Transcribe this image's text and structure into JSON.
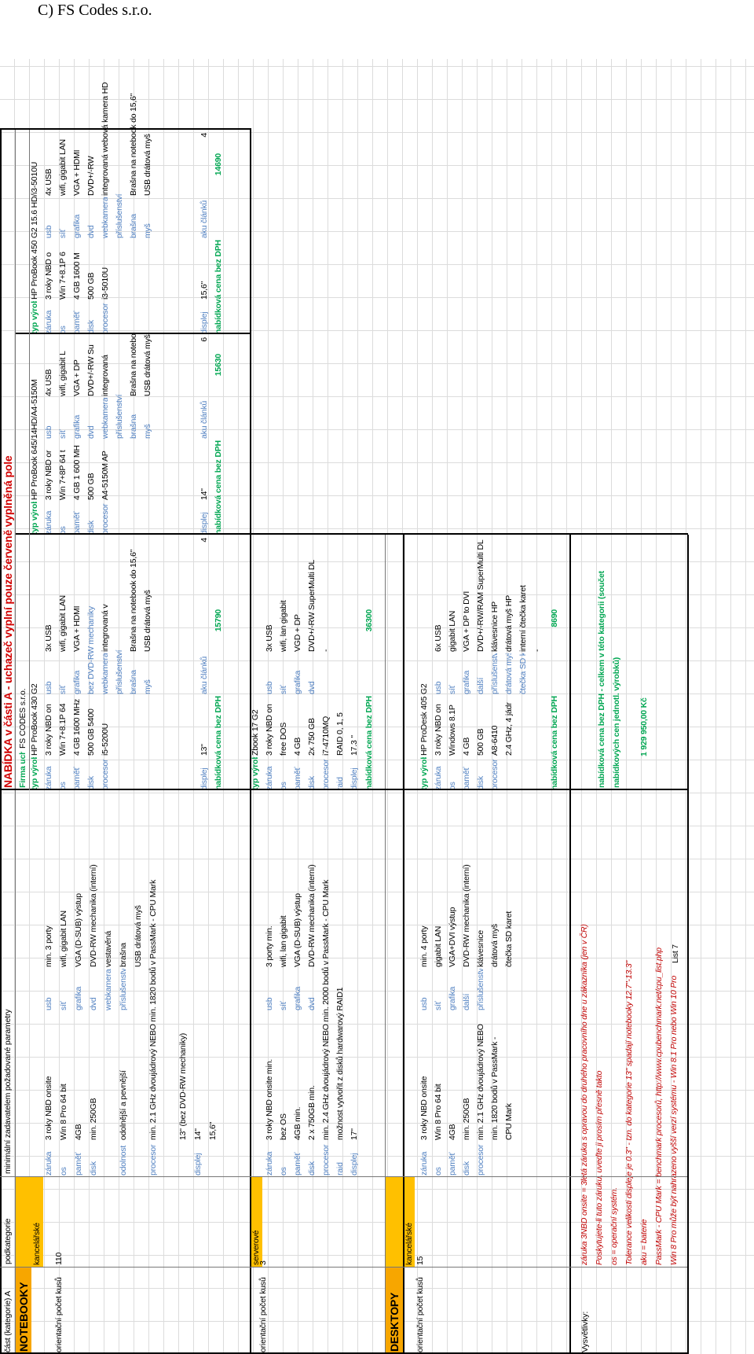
{
  "heading": "C)  FS Codes s.r.o.",
  "sheet": {
    "headers": [
      "část (kategorie) A",
      "podkategorie",
      "minimální zadavatelem požadované parametry",
      "NABÍDKA v části A - uchazeč vyplní pouze červeně vyplněná pole"
    ],
    "firm_label": "Firma uchazeče:",
    "firm": "FS CODES s.r.o.",
    "sections": [
      {
        "category": "NOTEBOOKY",
        "subcategory": "kancelářské",
        "count_label": "orientační počet kusů",
        "count": 110,
        "requirements": [
          [
            "záruka",
            "3 roky NBD onsite",
            "usb",
            "min. 3 porty"
          ],
          [
            "os",
            "Win 8 Pro 64 bit",
            "síť",
            "wifi, gigabit LAN"
          ],
          [
            "paměť",
            "4GB",
            "grafika",
            "VGA (D-SUB) výstup"
          ],
          [
            "disk",
            "min. 250GB",
            "dvd",
            "DVD-RW mechanika (interní)"
          ],
          [
            null,
            null,
            "webkamera",
            "vestavěná"
          ],
          [
            "odolnost",
            "odolnější a pevnější",
            "příslušenství",
            "brašna"
          ],
          [
            null,
            null,
            null,
            "USB drátová myš"
          ],
          [
            "procesor",
            "min. 2.1 GHz dvoujádrový NEBO min. 1820 bodů v PassMark - CPU Mark",
            null,
            null
          ],
          [
            null,
            null,
            null,
            null
          ],
          [
            null,
            "13\" (bez DVD-RW mechaniky)",
            null,
            null
          ],
          [
            "displej",
            "14\"",
            null,
            null
          ],
          [
            null,
            "15,6\"",
            null,
            null
          ]
        ],
        "offers": [
          {
            "rows": [
              [
                "typ výrobku",
                "HP ProBook 430 G2",
                null,
                null
              ],
              [
                "záruka",
                "3 roky NBD on",
                "usb",
                "3x USB"
              ],
              [
                "os",
                "Win 7+8.1P 64",
                "síť",
                "wifi, gigabit LAN"
              ],
              [
                "paměť",
                "4 GB 1600 MHz",
                "grafika",
                "VGA + HDMI"
              ],
              [
                "disk",
                "500 GB 5400",
                "bez DVD-RW mechaniky",
                null
              ],
              [
                "procesor",
                "i5-5200U",
                "webkamera",
                "integrovaná v"
              ],
              [
                null,
                null,
                "příslušenství",
                null
              ],
              [
                null,
                null,
                "brašna",
                "Brašna na notebook do 15,6\""
              ],
              [
                null,
                null,
                "myš",
                "USB drátová myš"
              ]
            ],
            "bottom": [
              "displej",
              "13\"",
              "aku článků",
              4
            ],
            "price_label": "nabídková cena bez DPH",
            "price": 15790
          },
          {
            "rows": [
              [
                "typ výrobku",
                "HP ProBook 645/14HD/A4-5150M",
                null,
                null
              ],
              [
                "záruka",
                "3 roky NBD or",
                "usb",
                "4x USB"
              ],
              [
                "os",
                "Win 7+8P 64 t",
                "síť",
                "wifi, gigabit L"
              ],
              [
                "paměť",
                "4 GB 1 600 MH",
                "grafika",
                "VGA + DP"
              ],
              [
                "disk",
                "500 GB",
                "dvd",
                "DVD+/-RW Su"
              ],
              [
                "procesor",
                "A4-5150M AP",
                "webkamera",
                "integrovaná"
              ],
              [
                null,
                null,
                "příslušenství",
                null
              ],
              [
                null,
                null,
                "brašna",
                "Brašna na notebook do 15,6\""
              ],
              [
                null,
                null,
                "myš",
                "USB drátová myš"
              ]
            ],
            "bottom": [
              "displej",
              "14\"",
              "aku článků",
              6
            ],
            "price_label": "nabídková cena bez DPH",
            "price": 15630
          },
          {
            "rows": [
              [
                "typ výrobku",
                "HP ProBook 450 G2 15.6 HD/i3-5010U",
                null,
                null
              ],
              [
                "záruka",
                "3 roky NBD o",
                "usb",
                "4x USB"
              ],
              [
                "os",
                "Win 7+8.1P 6",
                "síť",
                "wifi, gigabit LAN"
              ],
              [
                "paměť",
                "4 GB 1600 M",
                "grafika",
                "VGA + HDMI"
              ],
              [
                "disk",
                "500 GB",
                "dvd",
                "DVD+/-RW"
              ],
              [
                "procesor",
                "i3-5010U",
                "webkamera",
                "integrovaná webová kamera HD"
              ],
              [
                null,
                null,
                "příslušenství",
                null
              ],
              [
                null,
                null,
                "brašna",
                "Brašna na notebook do 15,6\""
              ],
              [
                null,
                null,
                "myš",
                "USB drátová myš"
              ]
            ],
            "bottom": [
              "displej",
              "15,6\"",
              "aku článků",
              4
            ],
            "price_label": "nabídková cena bez DPH",
            "price": 14690
          }
        ]
      },
      {
        "subcategory": "serverové",
        "count_label": "orientační počet kusů",
        "count": 3,
        "requirements": [
          [
            "záruka",
            "3 roky NBD onsite min.",
            "usb",
            "3 porty min."
          ],
          [
            "os",
            "bez OS",
            "síť",
            "wifi, lan gigabit"
          ],
          [
            "paměť",
            "4GB min.",
            "grafika",
            "VGA (D-SUB) výstup"
          ],
          [
            "disk",
            "2 x 750GB min.",
            "dvd",
            "DVD-RW mechanika (interní)"
          ],
          [
            "procesor",
            "min. 2.4 GHz dvoujádrový NEBO min. 2000 bodů v PassMark - CPU Mark",
            null,
            null
          ],
          [
            "raid",
            "možnost vytvořit z disků hardwarový RAID1",
            null,
            null
          ],
          [
            "displej",
            "17\"",
            null,
            null
          ]
        ],
        "offers": [
          {
            "rows": [
              [
                "typ výrobku",
                "Zbook 17 G2",
                null,
                null
              ],
              [
                "záruka",
                "3 roky NBD on",
                "usb",
                "3x USB"
              ],
              [
                "os",
                "free DOS",
                "síť",
                "wifi, lan gigabit"
              ],
              [
                "paměť",
                "4 GB",
                "grafika",
                "VGD + DP"
              ],
              [
                "disk",
                "2x 750 GB",
                "dvd",
                "DVD+/-RW SuperMulti DL"
              ],
              [
                "procesor",
                "i7-4710MQ",
                null,
                "-"
              ],
              [
                "raid",
                "RAID 0, 1, 5",
                null,
                null
              ]
            ],
            "bottom": [
              "displej",
              "17.3 \"",
              null,
              null
            ],
            "price_label": "nabídková cena bez DPH",
            "price": 36300
          }
        ]
      },
      {
        "category": "DESKTOPY",
        "subcategory": "kancelářské",
        "count_label": "orientační počet kusů",
        "count": 15,
        "requirements": [
          [
            "záruka",
            "3 roky NBD onsite",
            "usb",
            "min. 4 porty"
          ],
          [
            "os",
            "Win 8 Pro 64 bit",
            "síť",
            "gigabit LAN"
          ],
          [
            "paměť",
            "4GB",
            "grafika",
            "VGA+DVI výstup"
          ],
          [
            "disk",
            "min. 250GB",
            "další",
            "DVD-RW mechanika (interní)"
          ],
          [
            "procesor",
            "min. 2.1 GHz dvoujádrový NEBO",
            "příslušenství",
            "klávesnice"
          ],
          [
            null,
            "min. 1820 bodů v PassMark -",
            null,
            "drátová myš"
          ],
          [
            null,
            "CPU Mark",
            null,
            "čtečka SD karet"
          ]
        ],
        "offers": [
          {
            "rows": [
              [
                "typ výrobku",
                "HP ProDesk 405 G2",
                null,
                null
              ],
              [
                "záruka",
                "3 roky NBD on",
                "usb",
                "6x USB"
              ],
              [
                "os",
                "Windows 8.1P",
                "síť",
                "gigabit LAN"
              ],
              [
                "paměť",
                "4 GB",
                "grafika",
                "VGA + DP to DVI"
              ],
              [
                "disk",
                "500 GB",
                "další",
                "DVD+/-RW/RAM SuperMulti DL"
              ],
              [
                "procesor",
                "A8-6410",
                "příslušenství",
                "klávesnice HP"
              ],
              [
                null,
                "2.4 GHz, 4 jádr",
                "drátová myš",
                "drátová myš HP"
              ],
              [
                null,
                null,
                "čtečka SD karet",
                "interní čtečka karet"
              ],
              [
                null,
                null,
                null,
                "-"
              ]
            ],
            "price_label": "nabídková cena bez DPH",
            "price": 8690
          }
        ]
      }
    ],
    "notes_label": "Vysvětlivky:",
    "notes": [
      "záruka 3NBD onsite = 3letá záruka s opravou do druhého pracovního dne u zákazníka (jen v ČR)",
      "Poskytujete-li tuto záruku, uveďte ji prosím přesně takto",
      "os = operační systém.",
      "Tolerance velikosti displeje je 0.3\" - tzn. do kategorie 13\" spadají notebooky 12.7\"-13.3\"",
      "aku = baterie",
      "PassMark - CPU Mark = benchmark procesorů, http://www.cpubenchmark.net/cpu_list.php",
      "Win 8 Pro může být nahrazeno vyšší verzí systému - Win 8.1 Pro nebo Win 10 Pro"
    ],
    "total_label": "nabídková cena bez DPH - celkem v této kategorii (součet nabídkových cen jednotl. výrobků)",
    "total": "1 929 950,00 Kč",
    "sheet_tab": "List 7"
  }
}
